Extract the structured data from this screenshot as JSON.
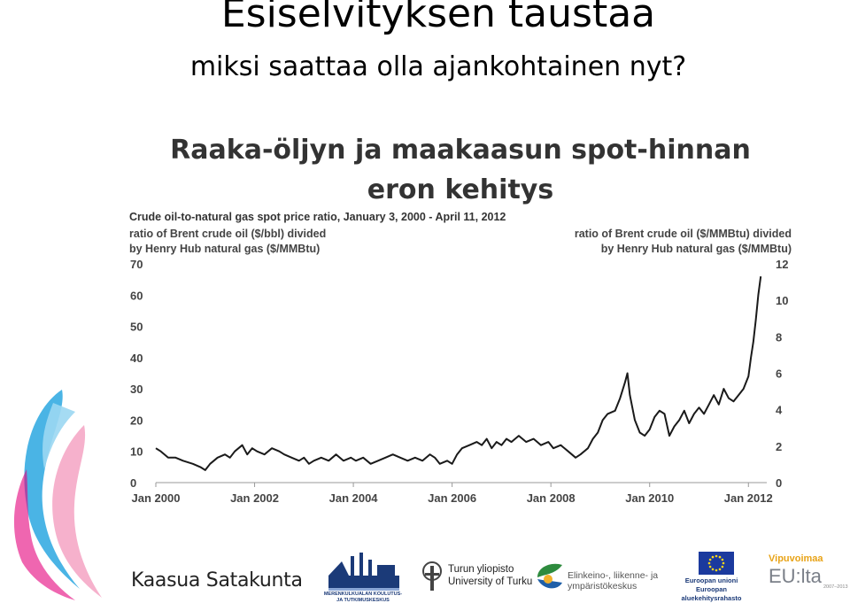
{
  "slide": {
    "title": "Esiselvityksen taustaa",
    "subtitle": "miksi saattaa olla ajankohtainen nyt?"
  },
  "chart_heading": {
    "line1": "Raaka-öljyn ja maakaasun spot-hinnan",
    "line2": "eron kehitys"
  },
  "chart_data": {
    "type": "line",
    "title": "Crude oil-to-natural gas spot price ratio, January 3, 2000 - April 11, 2012",
    "ylabel_left": [
      "ratio of Brent crude oil ($/bbl) divided",
      "by Henry Hub natural gas ($/MMBtu)"
    ],
    "ylabel_right": [
      "ratio of Brent crude oil ($/MMBtu) divided",
      "by Henry Hub natural gas ($/MMBtu)"
    ],
    "ylim_left": [
      0,
      70
    ],
    "ylim_right": [
      0,
      12
    ],
    "xlim": [
      2000.0,
      2012.3
    ],
    "y_ticks_left": [
      "70",
      "60",
      "50",
      "40",
      "30",
      "20",
      "10",
      "0"
    ],
    "y_ticks_right": [
      "12",
      "10",
      "8",
      "6",
      "4",
      "2",
      "0"
    ],
    "x_ticks": [
      {
        "label": "Jan 2000",
        "value": 2000
      },
      {
        "label": "Jan 2002",
        "value": 2002
      },
      {
        "label": "Jan 2004",
        "value": 2004
      },
      {
        "label": "Jan 2006",
        "value": 2006
      },
      {
        "label": "Jan 2008",
        "value": 2008
      },
      {
        "label": "Jan 2010",
        "value": 2010
      },
      {
        "label": "Jan 2012",
        "value": 2012
      }
    ],
    "grid": false,
    "color": "#1a1a1a",
    "series": [
      {
        "x": [
          2000.0,
          2000.1,
          2000.25,
          2000.4,
          2000.55,
          2000.75,
          2000.9,
          2001.0,
          2001.1,
          2001.25,
          2001.4,
          2001.5,
          2001.6,
          2001.75,
          2001.85,
          2001.95,
          2002.05,
          2002.2,
          2002.35,
          2002.5,
          2002.6,
          2002.75,
          2002.9,
          2003.0,
          2003.1,
          2003.2,
          2003.35,
          2003.5,
          2003.65,
          2003.8,
          2003.95,
          2004.05,
          2004.2,
          2004.35,
          2004.5,
          2004.65,
          2004.8,
          2004.95,
          2005.1,
          2005.25,
          2005.4,
          2005.55,
          2005.65,
          2005.75,
          2005.9,
          2006.0,
          2006.1,
          2006.2,
          2006.35,
          2006.5,
          2006.6,
          2006.7,
          2006.8,
          2006.9,
          2007.0,
          2007.1,
          2007.2,
          2007.35,
          2007.5,
          2007.65,
          2007.8,
          2007.95,
          2008.05,
          2008.2,
          2008.35,
          2008.5,
          2008.6,
          2008.75,
          2008.85,
          2008.95,
          2009.05,
          2009.15,
          2009.3,
          2009.4,
          2009.5,
          2009.55,
          2009.6,
          2009.7,
          2009.8,
          2009.9,
          2010.0,
          2010.1,
          2010.2,
          2010.3,
          2010.4,
          2010.5,
          2010.6,
          2010.7,
          2010.8,
          2010.9,
          2011.0,
          2011.1,
          2011.2,
          2011.3,
          2011.4,
          2011.5,
          2011.6,
          2011.7,
          2011.8,
          2011.9,
          2012.0,
          2012.05,
          2012.1,
          2012.15,
          2012.2,
          2012.25
        ],
        "y": [
          11,
          10,
          8,
          8,
          7,
          6,
          5,
          4,
          6,
          8,
          9,
          8,
          10,
          12,
          9,
          11,
          10,
          9,
          11,
          10,
          9,
          8,
          7,
          8,
          6,
          7,
          8,
          7,
          9,
          7,
          8,
          7,
          8,
          6,
          7,
          8,
          9,
          8,
          7,
          8,
          7,
          9,
          8,
          6,
          7,
          6,
          9,
          11,
          12,
          13,
          12,
          14,
          11,
          13,
          12,
          14,
          13,
          15,
          13,
          14,
          12,
          13,
          11,
          12,
          10,
          8,
          9,
          11,
          14,
          16,
          20,
          22,
          23,
          27,
          32,
          35,
          28,
          20,
          16,
          15,
          17,
          21,
          23,
          22,
          15,
          18,
          20,
          23,
          19,
          22,
          24,
          22,
          25,
          28,
          25,
          30,
          27,
          26,
          28,
          30,
          34,
          40,
          45,
          52,
          60,
          66
        ]
      }
    ]
  },
  "footer": {
    "kaasua": "Kaasua Satakunta",
    "mkk": "MERENKULKUALAN KOULUTUS- JA TUTKIMUSKESKUS",
    "turku_1": "Turun yliopisto",
    "turku_2": "University of Turku",
    "ely_1": "Elinkeino-, liikenne- ja",
    "ely_2": "ympäristökeskus",
    "eu_1": "Euroopan unioni",
    "eu_2": "Euroopan aluekehitysrahasto",
    "vipu_1": "Vipuvoimaa",
    "vipu_2": "EU:lta",
    "vipu_3": "2007–2013"
  }
}
